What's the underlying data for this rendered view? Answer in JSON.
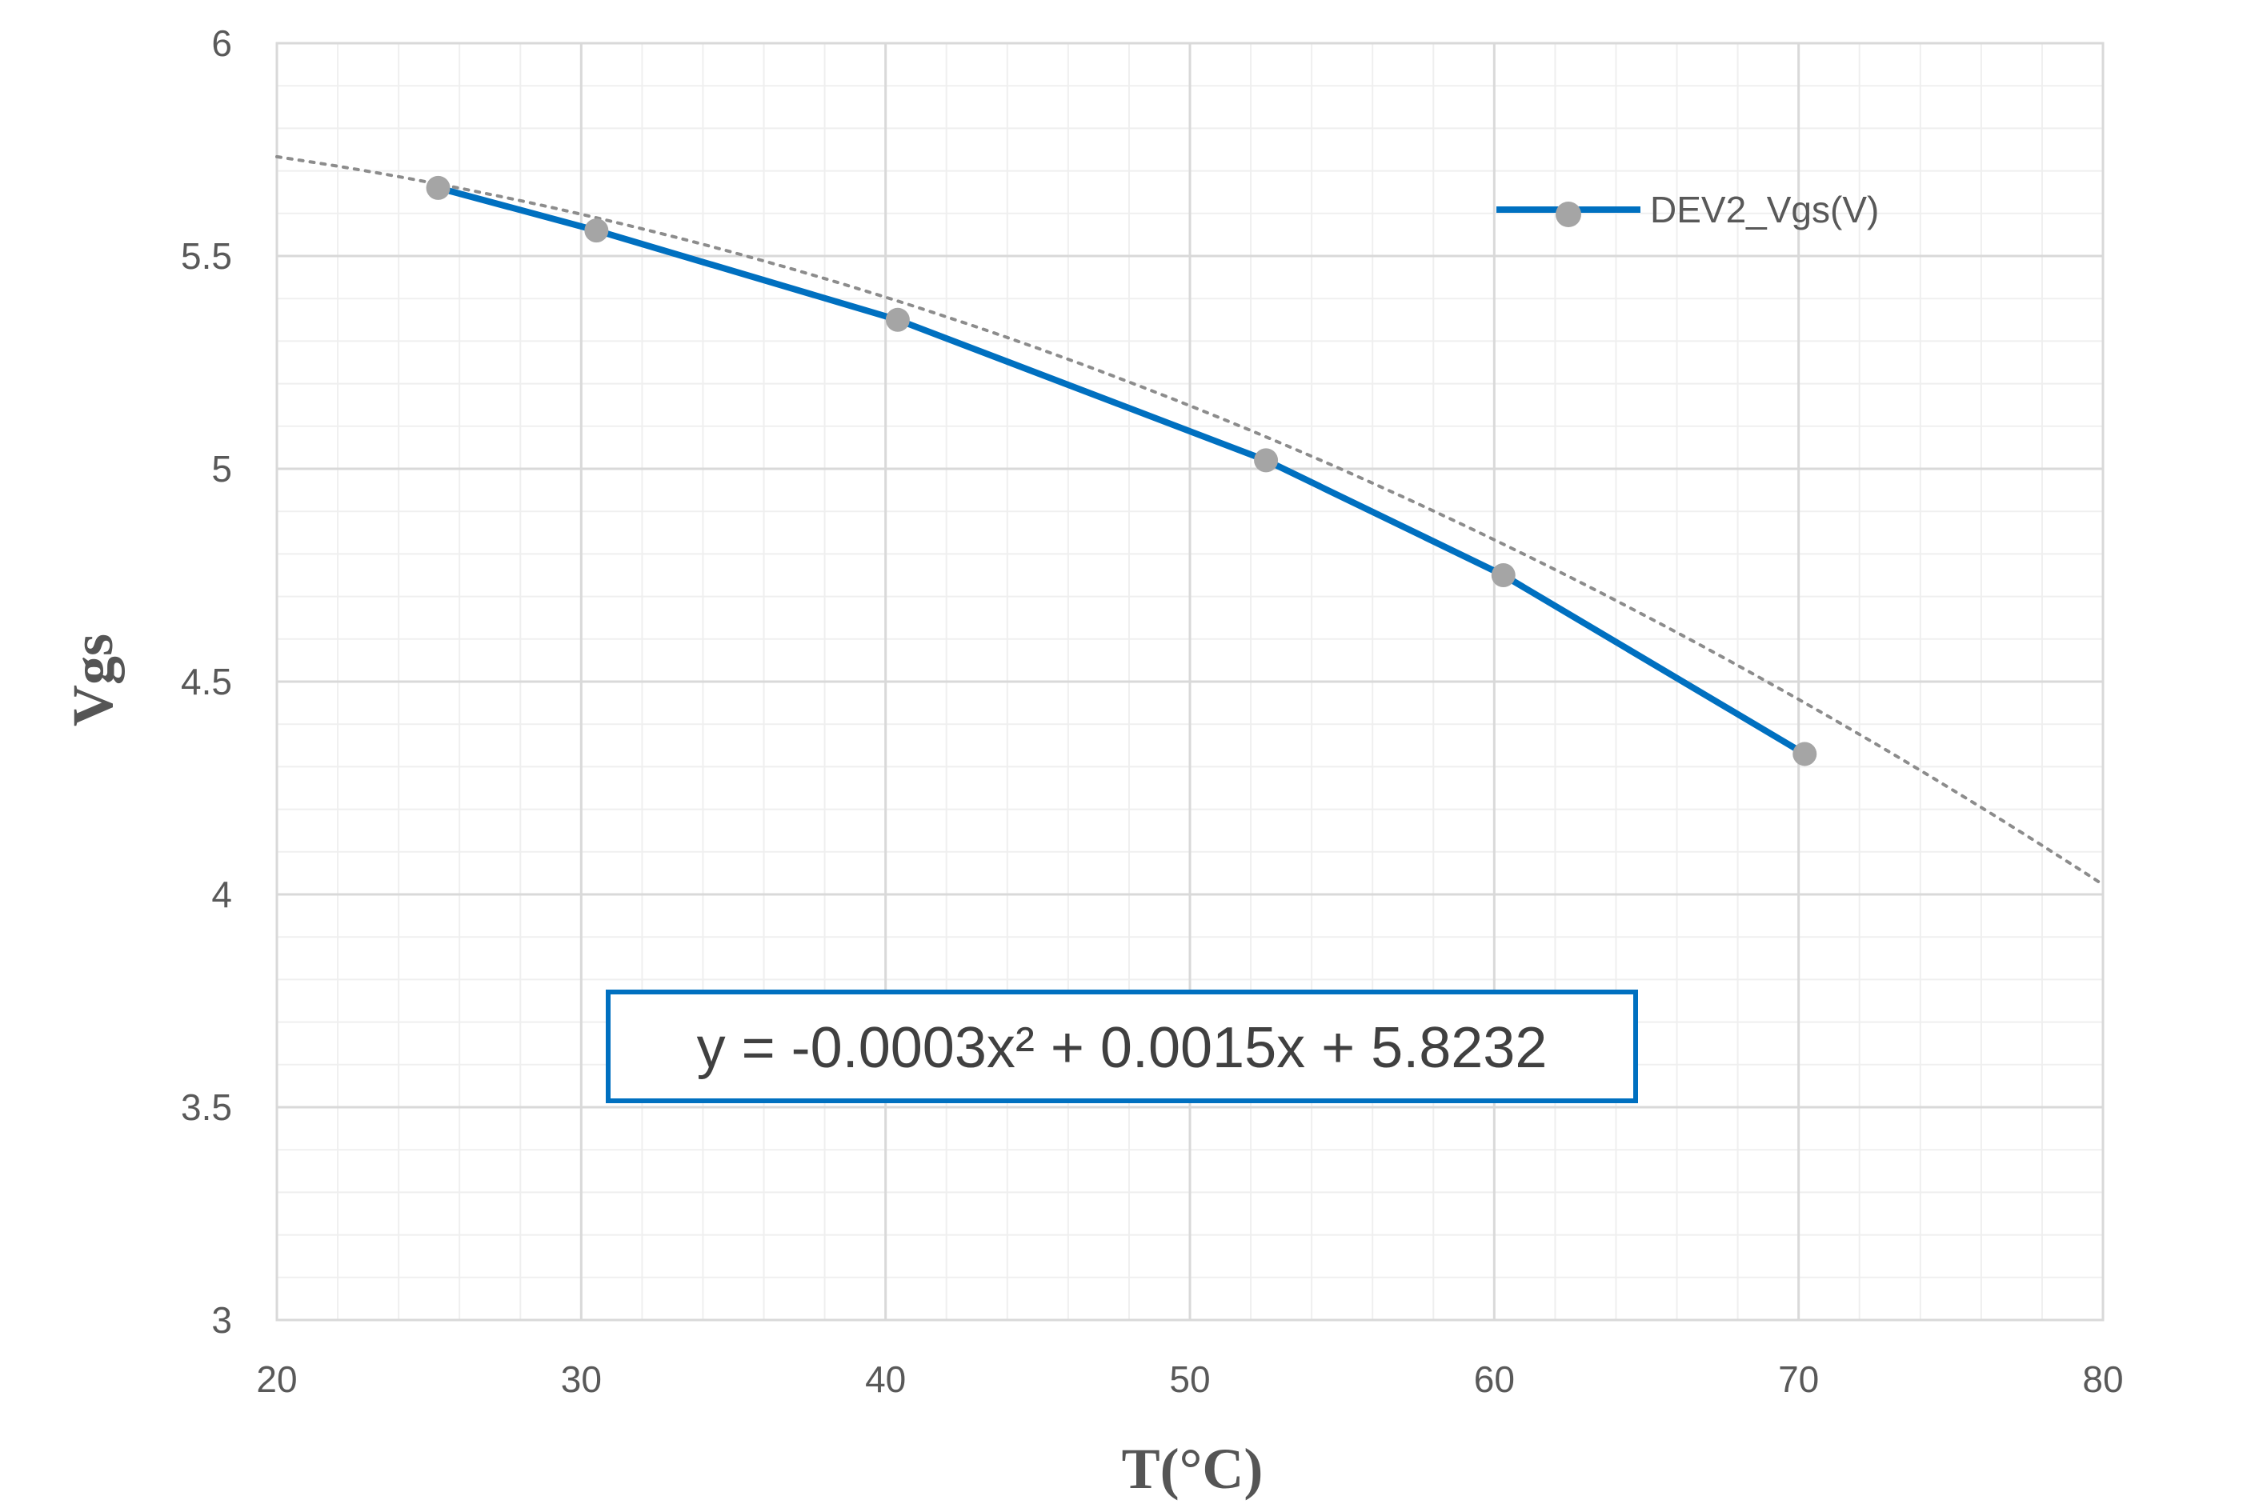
{
  "chart_data": {
    "type": "line",
    "title": "",
    "xlabel": "T(°C)",
    "ylabel": "Vgs",
    "xlim": [
      20,
      80
    ],
    "ylim": [
      3,
      6
    ],
    "x_ticks": [
      "20",
      "30",
      "40",
      "50",
      "60",
      "70",
      "80"
    ],
    "y_ticks": [
      "3",
      "3.5",
      "4",
      "4.5",
      "5",
      "5.5",
      "6"
    ],
    "grid": true,
    "minor_grid": true,
    "legend": {
      "position": "top-right",
      "entries": [
        "DEV2_Vgs(V)"
      ]
    },
    "series": [
      {
        "name": "DEV2_Vgs(V)",
        "color": "#0070C0",
        "marker_color": "#A5A5A5",
        "x": [
          25.3,
          30.5,
          40.4,
          52.5,
          60.3,
          70.2
        ],
        "y": [
          5.66,
          5.56,
          5.35,
          5.02,
          4.75,
          4.33
        ]
      }
    ],
    "trendline": {
      "type": "polynomial",
      "order": 2,
      "style": "dotted",
      "color": "#8C8C8C",
      "x_range": [
        20,
        80
      ],
      "coefficients": {
        "a": -0.0003,
        "b": 0.0015,
        "c": 5.8232
      },
      "equation_label": "y = -0.0003x² + 0.0015x + 5.8232",
      "equation_box_color": "#0070C0"
    }
  }
}
